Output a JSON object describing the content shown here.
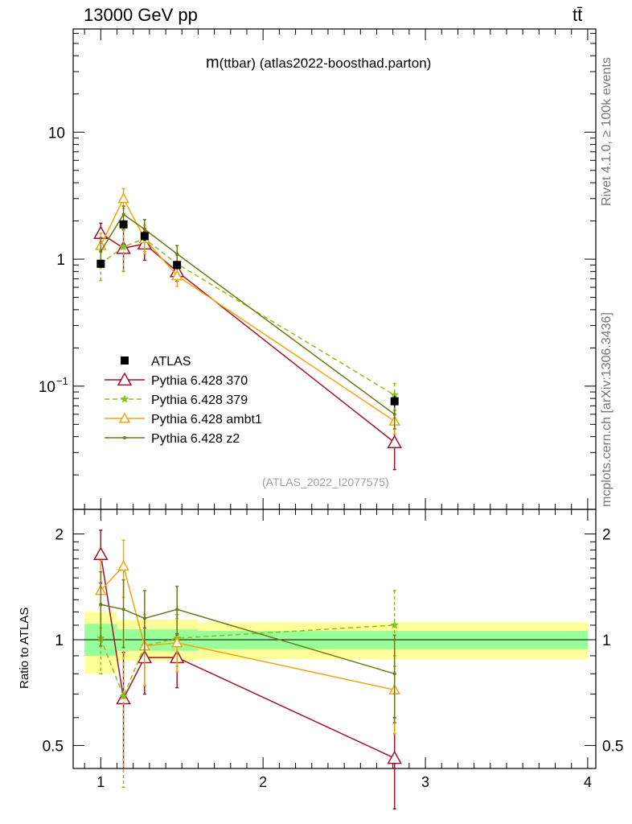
{
  "header": {
    "left": "13000 GeV pp",
    "right": "tt̄"
  },
  "side": {
    "rivet": "Rivet 4.1.0, ≥ 100k events",
    "mcplots": "mcplots.cern.ch [arXiv:1306.3436]"
  },
  "colors": {
    "data": "#000000",
    "p370": "#a2122b",
    "p379": "#88c11c",
    "ambt1": "#f2a40e",
    "z2": "#6b7a12",
    "band_inner": "#99ff99",
    "band_outer": "#ffff99"
  },
  "chart_data": {
    "type": "line",
    "title": "m(ttbar) (atlas2022-boosthad.parton)",
    "title_main": "m",
    "title_rest": "(ttbar) (atlas2022-boosthad.parton)",
    "watermark": "(ATLAS_2022_I2077575)",
    "xlabel": "",
    "xlim": [
      0.83,
      4.05
    ],
    "x_ticks": [
      "1",
      "2",
      "3",
      "4"
    ],
    "main": {
      "yscale": "log",
      "ylim": [
        0.0107,
        65
      ],
      "y_ticks": [
        {
          "value": 10,
          "label": "10"
        },
        {
          "value": 1,
          "label": "1"
        },
        {
          "value": 0.1,
          "label": "10",
          "sup": "−1"
        }
      ],
      "x": [
        1.0,
        1.14,
        1.27,
        1.47,
        2.81
      ],
      "data": {
        "name": "ATLAS",
        "values": [
          0.92,
          1.88,
          1.52,
          0.9,
          0.076
        ],
        "err": [
          0.06,
          0.15,
          0.12,
          0.07,
          0.008
        ]
      },
      "series": [
        {
          "name": "Pythia 6.428 370",
          "key": "p370",
          "marker": "triangle-open",
          "dash": "",
          "values": [
            1.6,
            1.22,
            1.32,
            0.8,
            0.036
          ],
          "lo": [
            1.3,
            0.8,
            0.98,
            0.67,
            0.022
          ],
          "hi": [
            1.92,
            1.7,
            1.65,
            0.93,
            0.05
          ]
        },
        {
          "name": "Pythia 6.428 379",
          "key": "p379",
          "marker": "star",
          "dash": "6,4",
          "values": [
            0.92,
            1.25,
            1.45,
            0.92,
            0.085
          ],
          "lo": [
            0.68,
            0.8,
            1.15,
            0.77,
            0.064
          ],
          "hi": [
            1.2,
            1.72,
            1.75,
            1.07,
            0.105
          ]
        },
        {
          "name": "Pythia 6.428 ambt1",
          "key": "ambt1",
          "marker": "triangle-open",
          "dash": "",
          "values": [
            1.28,
            3.0,
            1.45,
            0.74,
            0.053
          ],
          "lo": [
            0.98,
            2.5,
            1.1,
            0.61,
            0.042
          ],
          "hi": [
            1.6,
            3.6,
            1.85,
            0.87,
            0.065
          ]
        },
        {
          "name": "Pythia 6.428 z2",
          "key": "z2",
          "marker": "dot",
          "dash": "",
          "values": [
            1.15,
            2.25,
            1.72,
            1.1,
            0.06
          ],
          "lo": [
            0.86,
            1.88,
            1.4,
            0.93,
            0.046
          ],
          "hi": [
            1.48,
            2.62,
            2.05,
            1.28,
            0.074
          ]
        }
      ]
    },
    "ratio": {
      "ylabel": "Ratio to ATLAS",
      "yscale": "log",
      "ylim": [
        0.43,
        2.35
      ],
      "y_ticks": [
        {
          "value": 2,
          "label": "2"
        },
        {
          "value": 1,
          "label": "1"
        },
        {
          "value": 0.5,
          "label": "0.5"
        }
      ],
      "bands": [
        {
          "x0": 0.9,
          "x1": 1.1,
          "inner": [
            0.9,
            1.11
          ],
          "outer": [
            0.8,
            1.2
          ]
        },
        {
          "x0": 1.1,
          "x1": 1.6,
          "inner": [
            0.93,
            1.07
          ],
          "outer": [
            0.87,
            1.14
          ]
        },
        {
          "x0": 1.6,
          "x1": 4.0,
          "inner": [
            0.94,
            1.06
          ],
          "outer": [
            0.88,
            1.12
          ]
        }
      ],
      "series": [
        {
          "key": "p370",
          "values": [
            1.75,
            0.68,
            0.89,
            0.89,
            0.46
          ],
          "lo": [
            1.45,
            0.43,
            0.7,
            0.73,
            0.33
          ],
          "hi": [
            2.05,
            0.92,
            1.08,
            1.04,
            0.6
          ]
        },
        {
          "key": "p379",
          "values": [
            1.01,
            0.69,
            0.96,
            1.01,
            1.1
          ],
          "lo": [
            0.8,
            0.38,
            0.74,
            0.84,
            0.84
          ],
          "hi": [
            1.25,
            1.0,
            1.18,
            1.18,
            1.38
          ]
        },
        {
          "key": "ambt1",
          "values": [
            1.38,
            1.62,
            0.96,
            0.98,
            0.72
          ],
          "lo": [
            1.08,
            1.32,
            0.74,
            0.81,
            0.54
          ],
          "hi": [
            1.68,
            1.92,
            1.18,
            1.15,
            0.9
          ]
        },
        {
          "key": "z2",
          "values": [
            1.26,
            1.22,
            1.15,
            1.22,
            0.8
          ],
          "lo": [
            0.96,
            0.95,
            0.92,
            1.03,
            0.58
          ],
          "hi": [
            1.56,
            1.48,
            1.38,
            1.42,
            1.03
          ]
        }
      ]
    }
  }
}
